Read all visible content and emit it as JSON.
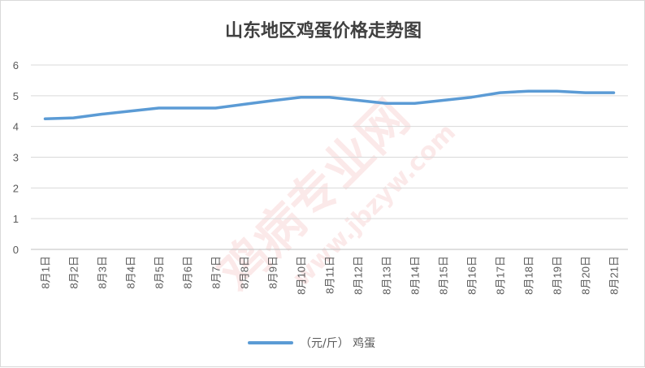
{
  "chart_data": {
    "type": "line",
    "title": "山东地区鸡蛋价格走势图",
    "categories": [
      "8月1日",
      "8月2日",
      "8月3日",
      "8月4日",
      "8月5日",
      "8月6日",
      "8月7日",
      "8月8日",
      "8月9日",
      "8月10日",
      "8月11日",
      "8月12日",
      "8月13日",
      "8月14日",
      "8月15日",
      "8月16日",
      "8月17日",
      "8月18日",
      "8月19日",
      "8月20日",
      "8月21日"
    ],
    "series": [
      {
        "name": "（元/斤） 鸡蛋",
        "color": "#5b9bd5",
        "values": [
          4.25,
          4.28,
          4.4,
          4.5,
          4.6,
          4.6,
          4.6,
          4.72,
          4.84,
          4.95,
          4.95,
          4.85,
          4.75,
          4.75,
          4.85,
          4.95,
          5.1,
          5.15,
          5.15,
          5.1,
          5.1
        ]
      }
    ],
    "ylim": [
      0,
      6
    ],
    "yticks": [
      0,
      1,
      2,
      3,
      4,
      5,
      6
    ],
    "grid": true,
    "legend": "bottom"
  },
  "watermark": {
    "text1": "鸡病专业网",
    "text2": "www.jbzyw.com"
  }
}
